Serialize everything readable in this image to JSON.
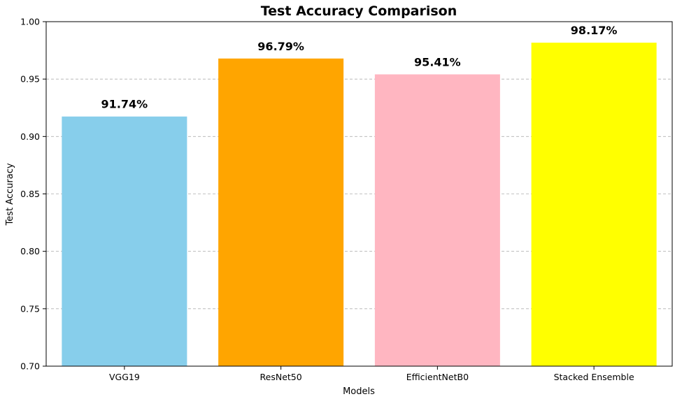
{
  "chart_data": {
    "type": "bar",
    "title": "Test Accuracy Comparison",
    "xlabel": "Models",
    "ylabel": "Test Accuracy",
    "categories": [
      "VGG19",
      "ResNet50",
      "EfficientNetB0",
      "Stacked Ensemble"
    ],
    "values": [
      0.9174,
      0.9679,
      0.9541,
      0.9817
    ],
    "data_labels": [
      "91.74%",
      "96.79%",
      "95.41%",
      "98.17%"
    ],
    "colors": [
      "#87CEEB",
      "#FFA500",
      "#FFB6C1",
      "#FFFF00"
    ],
    "ylim": [
      0.7,
      1.0
    ],
    "yticks": [
      0.7,
      0.75,
      0.8,
      0.85,
      0.9,
      0.95,
      1.0
    ],
    "ytick_labels": [
      "0.70",
      "0.75",
      "0.80",
      "0.85",
      "0.90",
      "0.95",
      "1.00"
    ],
    "grid": {
      "axis": "y",
      "style": "dashed"
    }
  }
}
